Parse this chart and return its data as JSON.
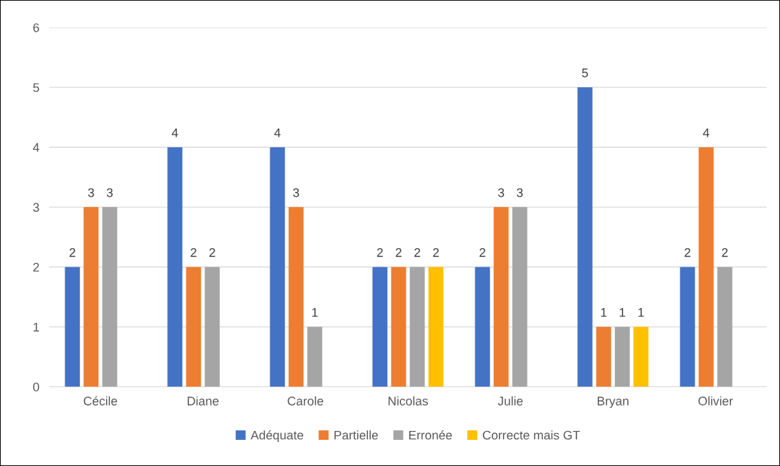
{
  "chart_data": {
    "type": "bar",
    "categories": [
      "Cécile",
      "Diane",
      "Carole",
      "Nicolas",
      "Julie",
      "Bryan",
      "Olivier"
    ],
    "series": [
      {
        "name": "Adéquate",
        "color": "#4472c4",
        "values": [
          2,
          4,
          4,
          2,
          2,
          5,
          2
        ]
      },
      {
        "name": "Partielle",
        "color": "#ed7d31",
        "values": [
          3,
          2,
          3,
          2,
          3,
          1,
          4
        ]
      },
      {
        "name": "Erronée",
        "color": "#a5a5a5",
        "values": [
          3,
          2,
          1,
          2,
          3,
          1,
          2
        ]
      },
      {
        "name": "Correcte mais GT",
        "color": "#ffc000",
        "values": [
          null,
          null,
          null,
          2,
          null,
          1,
          null
        ]
      }
    ],
    "ylim": [
      0,
      6
    ],
    "yticks": [
      0,
      1,
      2,
      3,
      4,
      5,
      6
    ],
    "grid": "y",
    "legend": "bottom",
    "data_labels": true
  }
}
